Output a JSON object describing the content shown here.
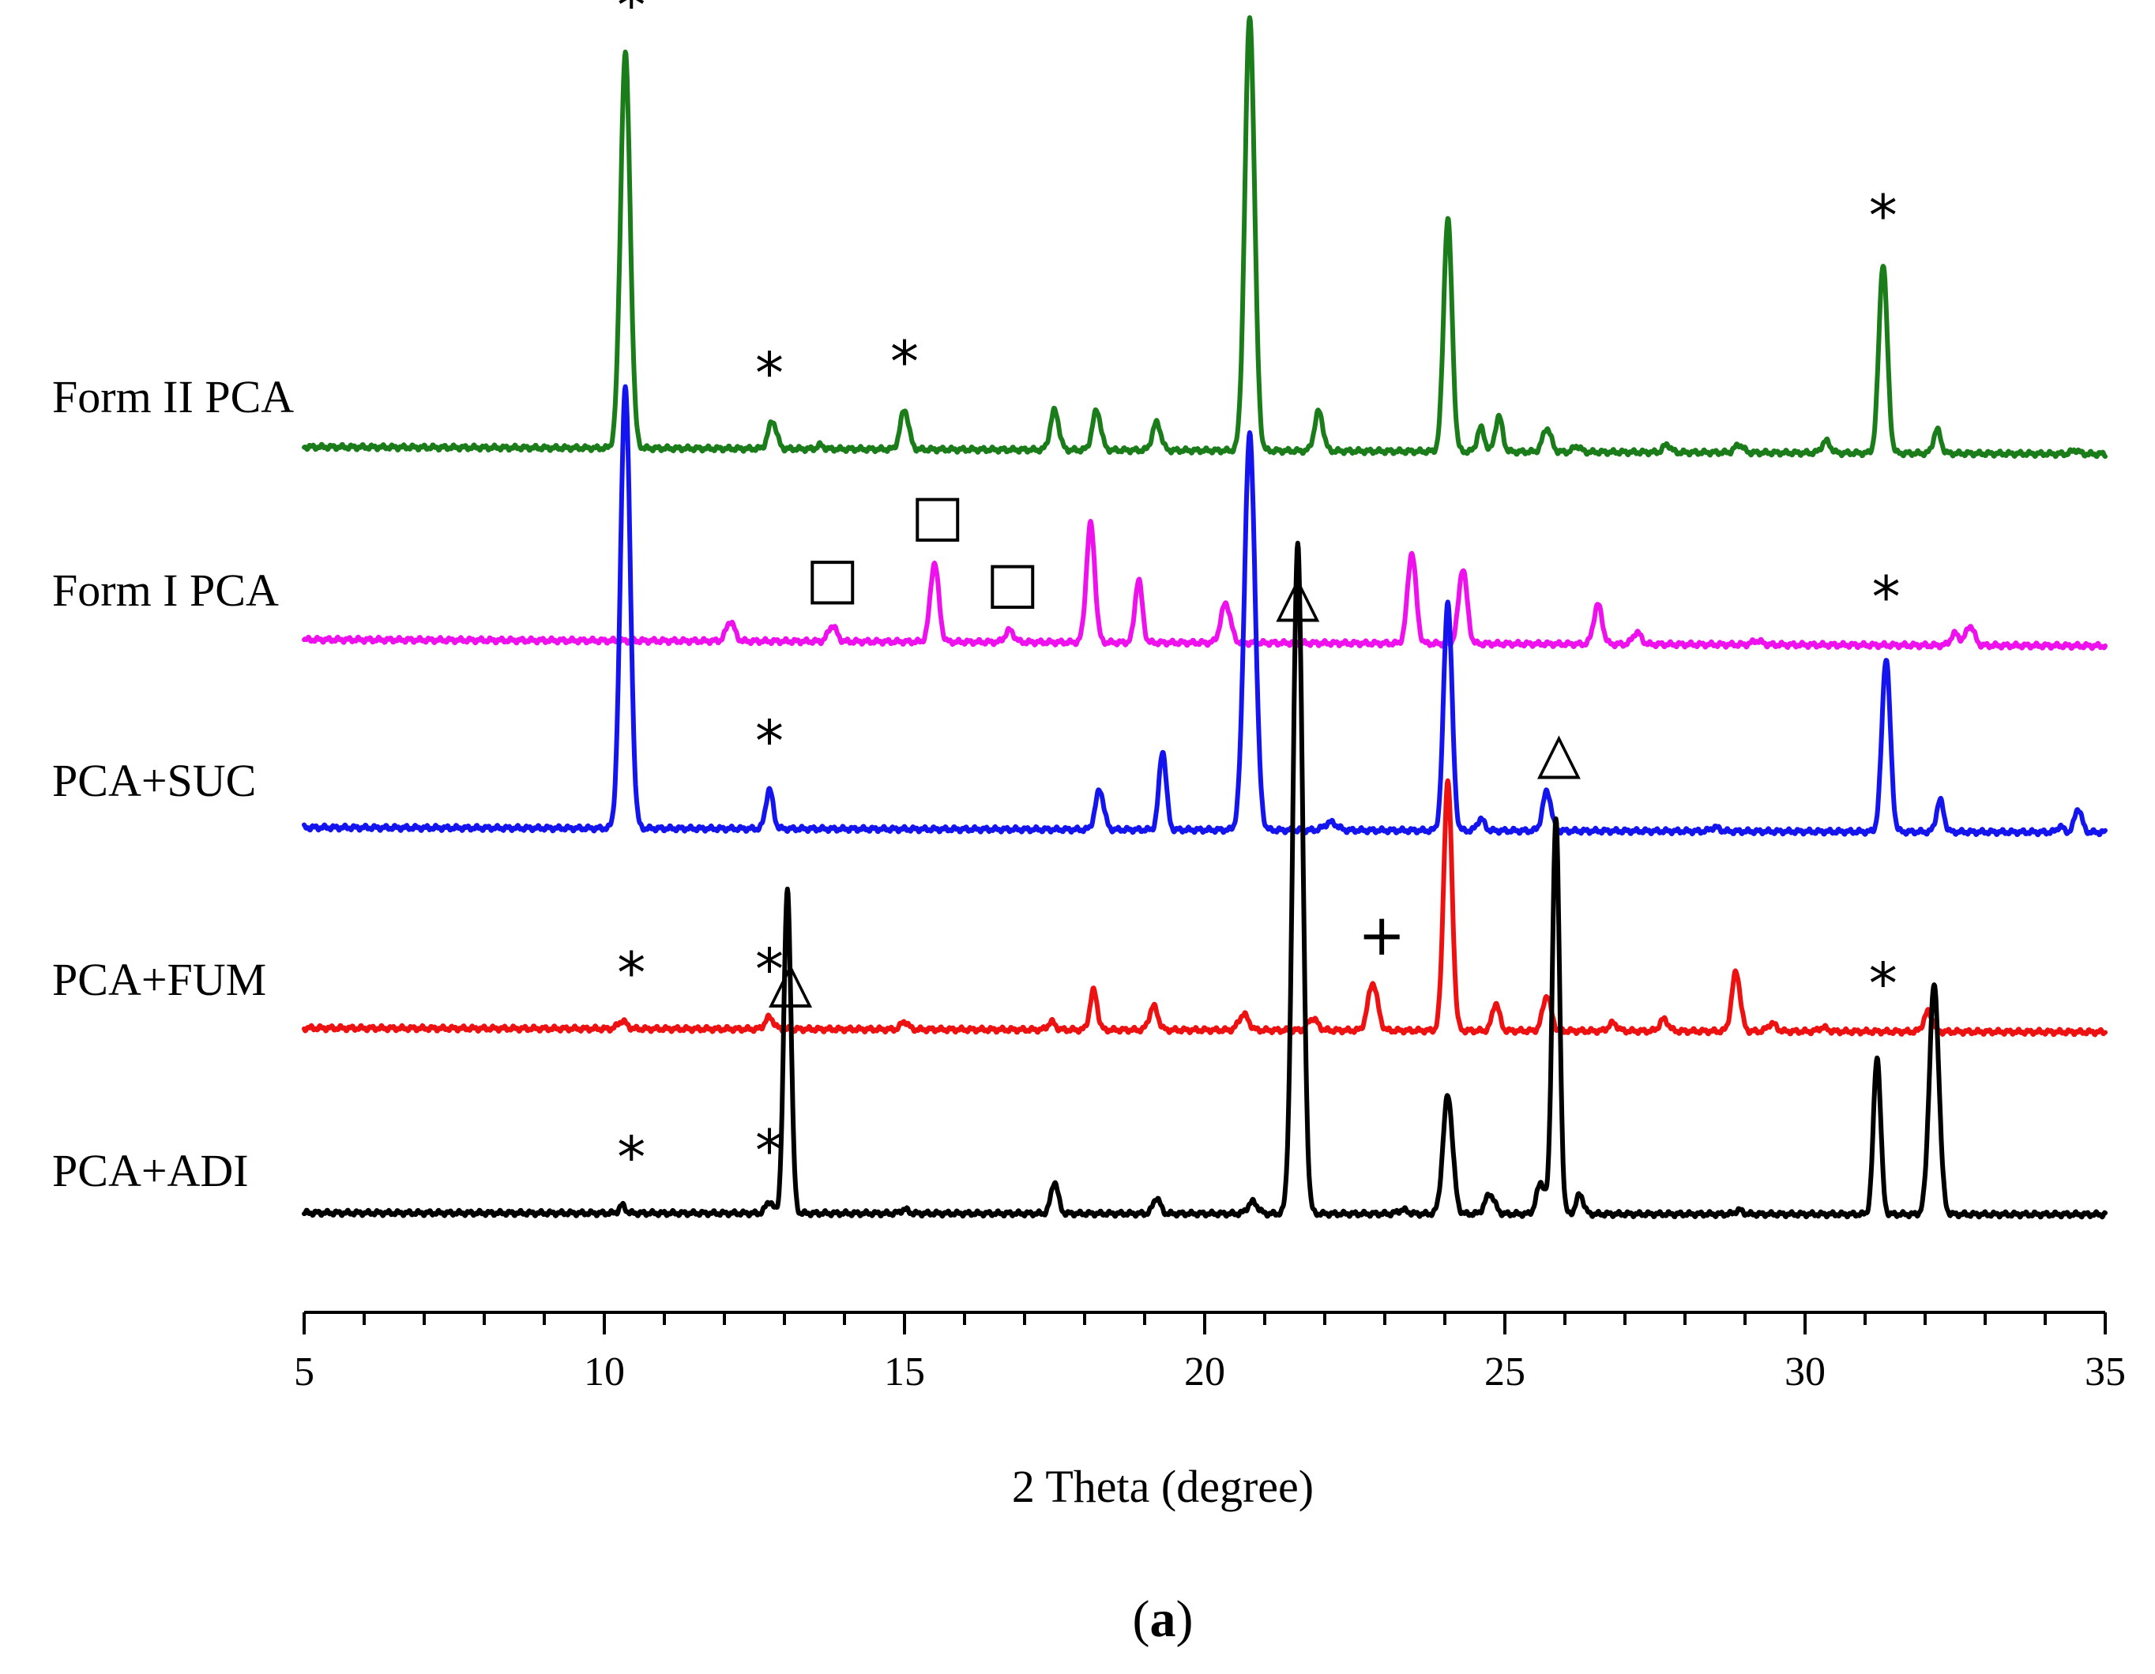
{
  "chart_data": {
    "type": "line",
    "title": "",
    "panel_label": "(a)",
    "xlabel": "2 Theta (degree)",
    "ylabel": "",
    "xlim": [
      5,
      35
    ],
    "x_major_ticks": [
      5,
      10,
      15,
      20,
      25,
      30,
      35
    ],
    "x_minor_step": 1,
    "y_axis_visible": false,
    "legend": "none",
    "series": [
      {
        "name": "Form II PCA",
        "color": "#1a7d1a",
        "baseline": 0.0,
        "peaks": [
          [
            10.35,
            1.0,
            0.08
          ],
          [
            12.8,
            0.07,
            0.07
          ],
          [
            13.6,
            0.01,
            0.05
          ],
          [
            15.0,
            0.1,
            0.07
          ],
          [
            17.5,
            0.1,
            0.07
          ],
          [
            18.2,
            0.1,
            0.07
          ],
          [
            19.2,
            0.07,
            0.07
          ],
          [
            20.75,
            1.1,
            0.08
          ],
          [
            21.9,
            0.1,
            0.07
          ],
          [
            24.05,
            0.59,
            0.07
          ],
          [
            24.6,
            0.06,
            0.06
          ],
          [
            24.9,
            0.09,
            0.06
          ],
          [
            25.7,
            0.06,
            0.07
          ],
          [
            26.2,
            0.015,
            0.06
          ],
          [
            27.7,
            0.02,
            0.06
          ],
          [
            28.9,
            0.02,
            0.07
          ],
          [
            30.35,
            0.03,
            0.07
          ],
          [
            31.3,
            0.48,
            0.07
          ],
          [
            32.2,
            0.06,
            0.06
          ],
          [
            34.5,
            0.01,
            0.06
          ]
        ]
      },
      {
        "name": "Form I PCA",
        "color": "#ee11ee",
        "baseline": 0.0,
        "peaks": [
          [
            12.1,
            0.05,
            0.07
          ],
          [
            13.8,
            0.04,
            0.07
          ],
          [
            15.5,
            0.2,
            0.07
          ],
          [
            16.75,
            0.03,
            0.07
          ],
          [
            18.1,
            0.3,
            0.07
          ],
          [
            18.9,
            0.16,
            0.06
          ],
          [
            20.35,
            0.1,
            0.08
          ],
          [
            23.45,
            0.23,
            0.07
          ],
          [
            24.3,
            0.19,
            0.07
          ],
          [
            26.55,
            0.1,
            0.07
          ],
          [
            27.2,
            0.03,
            0.07
          ],
          [
            29.2,
            0.01,
            0.08
          ],
          [
            32.5,
            0.03,
            0.07
          ],
          [
            32.75,
            0.05,
            0.07
          ]
        ]
      },
      {
        "name": "PCA+SUC",
        "color": "#1414ee",
        "baseline": 0.0,
        "peaks": [
          [
            10.35,
            1.12,
            0.08
          ],
          [
            12.75,
            0.1,
            0.06
          ],
          [
            18.25,
            0.1,
            0.07
          ],
          [
            19.3,
            0.2,
            0.06
          ],
          [
            20.75,
            1.0,
            0.09
          ],
          [
            22.1,
            0.02,
            0.1
          ],
          [
            24.05,
            0.58,
            0.07
          ],
          [
            24.6,
            0.03,
            0.06
          ],
          [
            25.7,
            0.1,
            0.07
          ],
          [
            28.5,
            0.01,
            0.07
          ],
          [
            31.35,
            0.44,
            0.07
          ],
          [
            32.25,
            0.08,
            0.06
          ],
          [
            34.25,
            0.015,
            0.05
          ],
          [
            34.55,
            0.06,
            0.06
          ]
        ]
      },
      {
        "name": "PCA+FUM",
        "color": "#ee1111",
        "baseline": 0.0,
        "peaks": [
          [
            10.3,
            0.02,
            0.07
          ],
          [
            12.75,
            0.03,
            0.07
          ],
          [
            15.0,
            0.02,
            0.06
          ],
          [
            17.45,
            0.02,
            0.06
          ],
          [
            18.15,
            0.1,
            0.06
          ],
          [
            19.15,
            0.06,
            0.07
          ],
          [
            20.65,
            0.04,
            0.08
          ],
          [
            21.8,
            0.03,
            0.08
          ],
          [
            22.8,
            0.12,
            0.08
          ],
          [
            24.05,
            0.63,
            0.07
          ],
          [
            24.85,
            0.07,
            0.06
          ],
          [
            25.7,
            0.09,
            0.07
          ],
          [
            26.8,
            0.02,
            0.07
          ],
          [
            27.65,
            0.03,
            0.07
          ],
          [
            28.85,
            0.15,
            0.07
          ],
          [
            29.45,
            0.02,
            0.07
          ],
          [
            30.3,
            0.01,
            0.07
          ],
          [
            32.05,
            0.05,
            0.07
          ]
        ]
      },
      {
        "name": "PCA+ADI",
        "color": "#000000",
        "baseline": 0.0,
        "peaks": [
          [
            10.3,
            0.02,
            0.05
          ],
          [
            12.75,
            0.03,
            0.06
          ],
          [
            13.05,
            0.82,
            0.06
          ],
          [
            15.0,
            0.01,
            0.06
          ],
          [
            17.5,
            0.08,
            0.06
          ],
          [
            19.2,
            0.04,
            0.06
          ],
          [
            20.8,
            0.03,
            0.08
          ],
          [
            21.55,
            1.7,
            0.08
          ],
          [
            23.3,
            0.01,
            0.08
          ],
          [
            24.05,
            0.3,
            0.08
          ],
          [
            24.75,
            0.05,
            0.08
          ],
          [
            25.6,
            0.08,
            0.07
          ],
          [
            25.85,
            1.0,
            0.06
          ],
          [
            26.25,
            0.05,
            0.06
          ],
          [
            28.9,
            0.01,
            0.06
          ],
          [
            31.2,
            0.4,
            0.06
          ],
          [
            32.15,
            0.58,
            0.08
          ]
        ]
      }
    ],
    "annotations": [
      {
        "symbol": "*",
        "series": "Form II PCA",
        "x": 10.45
      },
      {
        "symbol": "*",
        "series": "Form II PCA",
        "x": 12.75
      },
      {
        "symbol": "*",
        "series": "Form II PCA",
        "x": 15.0
      },
      {
        "symbol": "*",
        "series": "Form II PCA",
        "x": 31.3
      },
      {
        "symbol": "□",
        "series": "Form I PCA",
        "x": 13.8
      },
      {
        "symbol": "□",
        "series": "Form I PCA",
        "x": 15.55
      },
      {
        "symbol": "□",
        "series": "Form I PCA",
        "x": 16.8
      },
      {
        "symbol": "△",
        "series": "Form I PCA",
        "x": 21.55
      },
      {
        "symbol": "*",
        "series": "Form I PCA",
        "x": 31.35
      },
      {
        "symbol": "*",
        "series": "PCA+SUC",
        "x": 12.75
      },
      {
        "symbol": "△",
        "series": "PCA+SUC",
        "x": 25.9
      },
      {
        "symbol": "△",
        "series": "PCA+FUM",
        "x": 13.1
      },
      {
        "symbol": "*",
        "series": "PCA+FUM",
        "x": 10.45
      },
      {
        "symbol": "*",
        "series": "PCA+FUM",
        "x": 12.75
      },
      {
        "symbol": "+",
        "series": "PCA+FUM",
        "x": 22.95
      },
      {
        "symbol": "*",
        "series": "PCA+FUM",
        "x": 31.3
      },
      {
        "symbol": "*",
        "series": "PCA+ADI",
        "x": 10.45
      },
      {
        "symbol": "*",
        "series": "PCA+ADI",
        "x": 12.75
      }
    ]
  }
}
